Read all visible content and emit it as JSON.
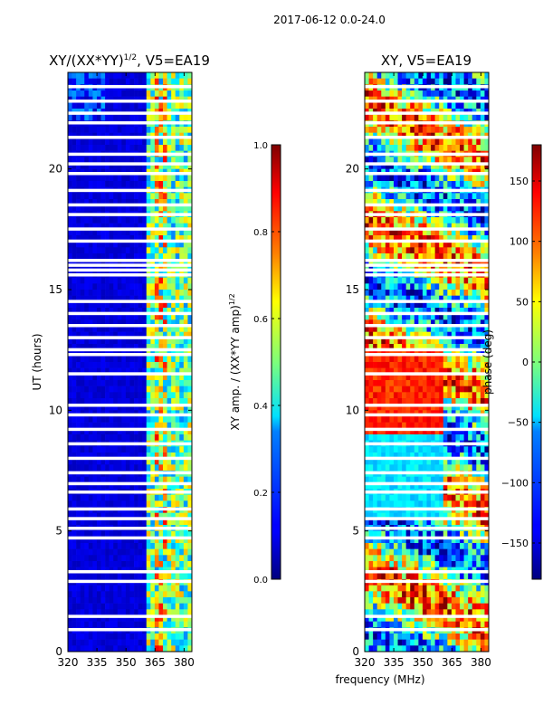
{
  "suptitle": "2017-06-12 0.0-24.0",
  "xlabel_shared": "frequency (MHz)",
  "chart_data": [
    {
      "type": "heatmap",
      "title": "XY/(XX*YY)",
      "title_sup": "1/2",
      "title_suffix": ", V5=EA19",
      "ylabel": "UT (hours)",
      "xlim": [
        320,
        384
      ],
      "ylim": [
        0,
        24
      ],
      "xticks": [
        320,
        335,
        350,
        365,
        380
      ],
      "yticks": [
        0,
        5,
        10,
        15,
        20
      ],
      "colorbar": {
        "label": "XY amp. / (XX*YY amp)",
        "label_sup": "1/2",
        "range": [
          0.0,
          1.0
        ],
        "ticks": [
          "0.0",
          "0.2",
          "0.4",
          "0.6",
          "0.8",
          "1.0"
        ],
        "tick_values": [
          0.0,
          0.2,
          0.4,
          0.6,
          0.8,
          1.0
        ],
        "colormap": "jet"
      },
      "blank_rows_hours": [
        0.9,
        1.45,
        2.9,
        3.3,
        4.7,
        5.1,
        5.5,
        5.9,
        6.6,
        6.95,
        7.4,
        8.0,
        8.6,
        9.2,
        9.8,
        10.2,
        11.5,
        12.3,
        12.5,
        13.0,
        13.5,
        14.0,
        14.5,
        15.6,
        15.8,
        16.0,
        16.2,
        17.0,
        17.5,
        18.1,
        18.5,
        19.1,
        19.8,
        20.2,
        20.6,
        21.3,
        21.9,
        22.3,
        22.8,
        23.4
      ]
    },
    {
      "type": "heatmap",
      "title": "XY, V5=EA19",
      "xlim": [
        320,
        384
      ],
      "ylim": [
        0,
        24
      ],
      "xticks": [
        320,
        335,
        350,
        365,
        380
      ],
      "yticks": [
        0,
        5,
        10,
        15,
        20
      ],
      "colorbar": {
        "label": "phase (deg)",
        "range": [
          -180,
          180
        ],
        "ticks": [
          "−150",
          "−100",
          "−50",
          "0",
          "50",
          "100",
          "150"
        ],
        "tick_values": [
          -150,
          -100,
          -50,
          0,
          50,
          100,
          150
        ],
        "colormap": "jet"
      },
      "blank_rows_hours": [
        0.9,
        1.45,
        2.9,
        3.3,
        4.7,
        5.1,
        5.5,
        5.9,
        6.6,
        6.95,
        7.4,
        8.0,
        8.6,
        9.2,
        9.8,
        10.2,
        11.5,
        12.3,
        12.5,
        13.0,
        13.5,
        14.0,
        14.5,
        15.6,
        15.8,
        16.0,
        16.2,
        17.0,
        17.5,
        18.1,
        18.5,
        19.1,
        19.8,
        20.2,
        20.6,
        21.3,
        21.9,
        22.3,
        22.8,
        23.4
      ]
    }
  ]
}
